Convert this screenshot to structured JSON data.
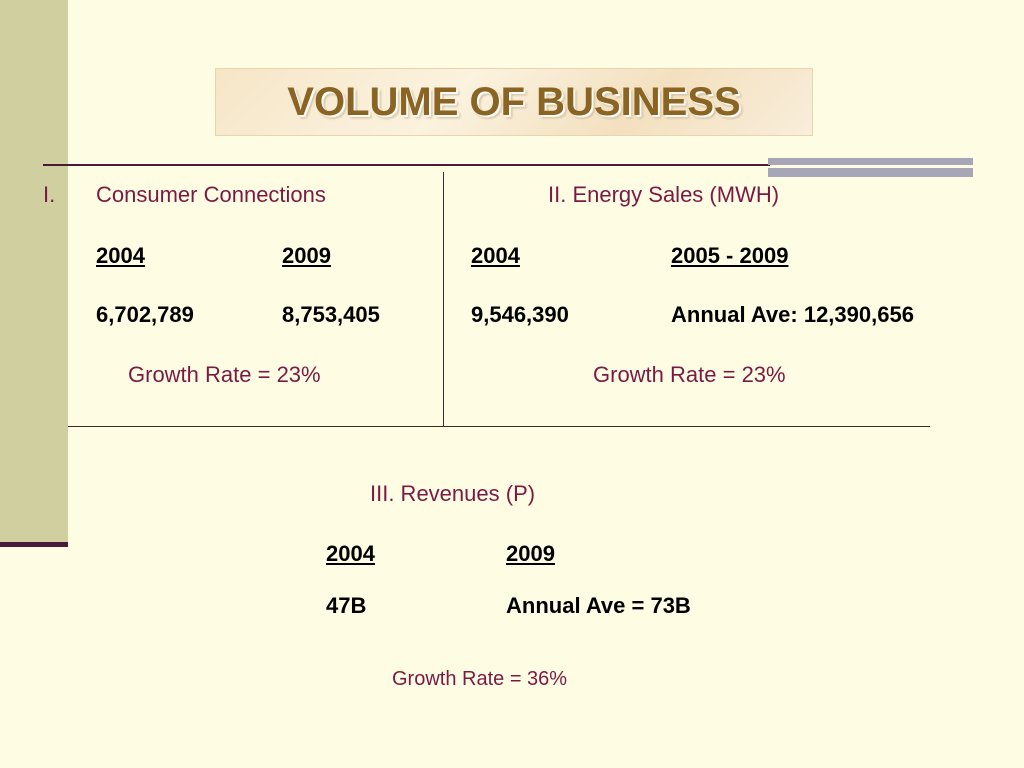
{
  "slide": {
    "title": "VOLUME OF BUSINESS"
  },
  "section1": {
    "number": "I.",
    "heading": "Consumer Connections",
    "years": [
      "2004",
      "2009"
    ],
    "values": [
      "6,702,789",
      "8,753,405"
    ],
    "growth": "Growth Rate = 23%"
  },
  "section2": {
    "heading": "II.  Energy Sales (MWH)",
    "years": [
      "2004",
      "2005 - 2009"
    ],
    "values": [
      "9,546,390",
      "Annual Ave: 12,390,656"
    ],
    "growth": "Growth Rate = 23%"
  },
  "section3": {
    "heading": "III.  Revenues (P)",
    "years": [
      "2004",
      "2009"
    ],
    "values": [
      "47B",
      "Annual Ave = 73B"
    ],
    "growth": "Growth Rate = 36%"
  },
  "colors": {
    "background": "#fefde3",
    "left_band": "#cfcf9f",
    "accent_rule": "#4a1a3a",
    "heading_text": "#7a1a44",
    "title_text": "#8a6422",
    "decor_bars": "#a6a6b6"
  }
}
